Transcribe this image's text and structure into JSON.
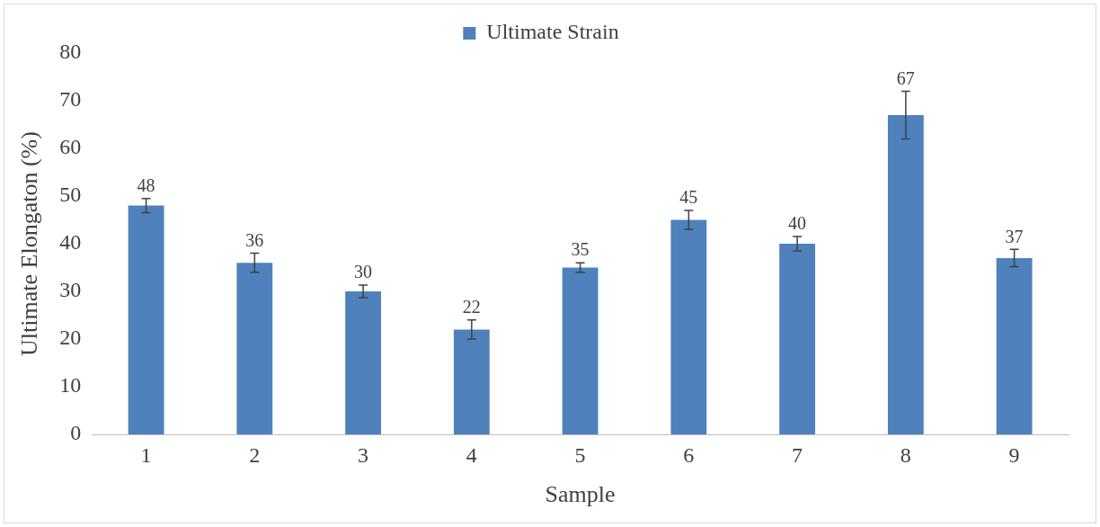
{
  "chart_data": {
    "type": "bar",
    "xlabel": "Sample",
    "ylabel": "Ultimate Elongaton (%)",
    "categories": [
      "1",
      "2",
      "3",
      "4",
      "5",
      "6",
      "7",
      "8",
      "9"
    ],
    "series": [
      {
        "name": "Ultimate Strain",
        "color": "#4f81bd",
        "values": [
          48,
          36,
          30,
          22,
          35,
          45,
          40,
          67,
          37
        ],
        "errors": [
          1.5,
          2,
          1.3,
          2,
          1,
          2,
          1.5,
          5,
          1.8
        ]
      }
    ],
    "ylim": [
      0,
      80
    ],
    "yticks": [
      0,
      10,
      20,
      30,
      40,
      50,
      60,
      70,
      80
    ],
    "grid": false,
    "legend": "top",
    "data_labels": true
  }
}
